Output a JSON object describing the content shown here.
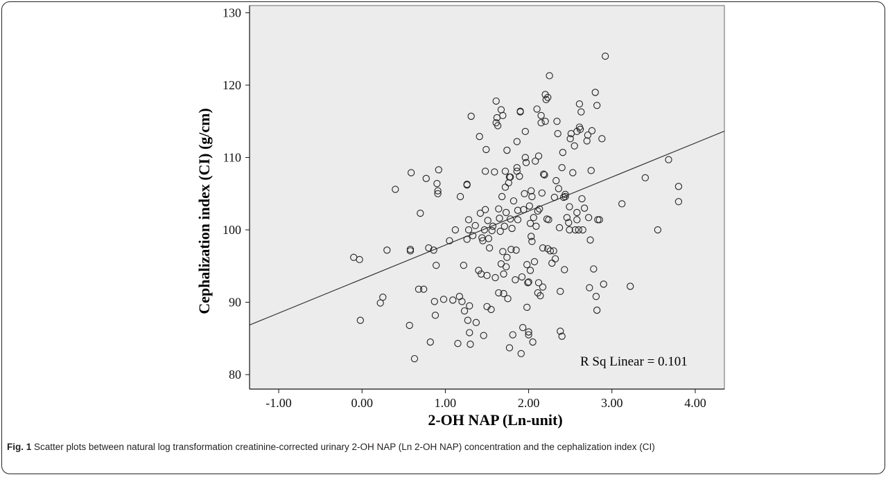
{
  "caption": {
    "label": "Fig. 1",
    "text": "Scatter plots between natural log transformation creatinine-corrected urinary 2-OH NAP (Ln 2-OH NAP) concentration and the cephalization index (CI)"
  },
  "chart_data": {
    "type": "scatter",
    "title": "",
    "xlabel": "2-OH NAP (Ln-unit)",
    "ylabel": "Cephalization index (CI) (g/cm)",
    "xlim": [
      -1.35,
      4.35
    ],
    "ylim": [
      78,
      131
    ],
    "xticks": [
      -1.0,
      0.0,
      1.0,
      2.0,
      3.0,
      4.0
    ],
    "xtick_labels": [
      "-1.00",
      "0.00",
      "1.00",
      "2.00",
      "3.00",
      "4.00"
    ],
    "yticks": [
      80,
      90,
      100,
      110,
      120,
      130
    ],
    "ytick_labels": [
      "80",
      "90",
      "100",
      "110",
      "120",
      "130"
    ],
    "grid": false,
    "background": "#ececec",
    "marker": "open-circle",
    "annotation": "R Sq Linear = 0.101",
    "fit_line": {
      "intercept": 93.2,
      "slope": 4.7,
      "x_range": [
        -1.35,
        4.35
      ]
    },
    "points": [
      [
        -0.1,
        96.2
      ],
      [
        -0.03,
        95.9
      ],
      [
        -0.02,
        87.5
      ],
      [
        0.22,
        89.9
      ],
      [
        0.25,
        90.7
      ],
      [
        0.3,
        97.2
      ],
      [
        0.4,
        105.6
      ],
      [
        0.57,
        86.8
      ],
      [
        0.58,
        97.3
      ],
      [
        0.58,
        97.1
      ],
      [
        0.59,
        107.9
      ],
      [
        0.63,
        82.2
      ],
      [
        0.68,
        91.8
      ],
      [
        0.7,
        102.3
      ],
      [
        0.74,
        91.8
      ],
      [
        0.77,
        107.1
      ],
      [
        0.8,
        97.5
      ],
      [
        0.82,
        84.5
      ],
      [
        0.86,
        97.2
      ],
      [
        0.87,
        90.1
      ],
      [
        0.88,
        88.2
      ],
      [
        0.89,
        95.1
      ],
      [
        0.9,
        106.4
      ],
      [
        0.91,
        105.4
      ],
      [
        0.91,
        105.0
      ],
      [
        0.92,
        108.3
      ],
      [
        0.98,
        90.4
      ],
      [
        1.05,
        98.5
      ],
      [
        1.09,
        90.3
      ],
      [
        1.12,
        100.0
      ],
      [
        1.15,
        84.3
      ],
      [
        1.17,
        90.8
      ],
      [
        1.18,
        104.6
      ],
      [
        1.2,
        90.1
      ],
      [
        1.22,
        95.1
      ],
      [
        1.23,
        88.8
      ],
      [
        1.26,
        106.3
      ],
      [
        1.26,
        106.2
      ],
      [
        1.26,
        98.7
      ],
      [
        1.27,
        87.5
      ],
      [
        1.28,
        101.4
      ],
      [
        1.28,
        100.0
      ],
      [
        1.29,
        89.5
      ],
      [
        1.29,
        85.8
      ],
      [
        1.3,
        84.2
      ],
      [
        1.31,
        115.7
      ],
      [
        1.33,
        99.2
      ],
      [
        1.36,
        100.6
      ],
      [
        1.37,
        87.2
      ],
      [
        1.4,
        94.4
      ],
      [
        1.41,
        112.9
      ],
      [
        1.42,
        102.3
      ],
      [
        1.43,
        93.9
      ],
      [
        1.44,
        98.9
      ],
      [
        1.45,
        98.5
      ],
      [
        1.46,
        85.4
      ],
      [
        1.47,
        100.0
      ],
      [
        1.48,
        108.1
      ],
      [
        1.48,
        102.8
      ],
      [
        1.49,
        111.1
      ],
      [
        1.5,
        93.7
      ],
      [
        1.5,
        89.4
      ],
      [
        1.51,
        101.3
      ],
      [
        1.52,
        98.8
      ],
      [
        1.53,
        97.5
      ],
      [
        1.55,
        89.0
      ],
      [
        1.56,
        99.9
      ],
      [
        1.57,
        100.5
      ],
      [
        1.59,
        108.0
      ],
      [
        1.6,
        93.4
      ],
      [
        1.61,
        117.8
      ],
      [
        1.61,
        114.8
      ],
      [
        1.62,
        115.5
      ],
      [
        1.63,
        114.4
      ],
      [
        1.64,
        91.3
      ],
      [
        1.64,
        102.9
      ],
      [
        1.65,
        101.6
      ],
      [
        1.66,
        99.8
      ],
      [
        1.67,
        116.6
      ],
      [
        1.67,
        95.3
      ],
      [
        1.68,
        104.6
      ],
      [
        1.69,
        115.8
      ],
      [
        1.69,
        97.0
      ],
      [
        1.7,
        91.2
      ],
      [
        1.7,
        93.9
      ],
      [
        1.71,
        100.5
      ],
      [
        1.72,
        105.9
      ],
      [
        1.72,
        108.1
      ],
      [
        1.73,
        102.4
      ],
      [
        1.73,
        94.9
      ],
      [
        1.74,
        111.0
      ],
      [
        1.74,
        96.2
      ],
      [
        1.75,
        90.5
      ],
      [
        1.76,
        106.5
      ],
      [
        1.77,
        83.7
      ],
      [
        1.77,
        107.3
      ],
      [
        1.78,
        101.5
      ],
      [
        1.78,
        107.3
      ],
      [
        1.79,
        97.3
      ],
      [
        1.8,
        100.2
      ],
      [
        1.81,
        85.5
      ],
      [
        1.82,
        104.0
      ],
      [
        1.84,
        93.1
      ],
      [
        1.85,
        97.2
      ],
      [
        1.86,
        108.1
      ],
      [
        1.86,
        108.6
      ],
      [
        1.86,
        112.2
      ],
      [
        1.87,
        102.7
      ],
      [
        1.87,
        101.4
      ],
      [
        1.89,
        107.4
      ],
      [
        1.9,
        116.3
      ],
      [
        1.9,
        116.4
      ],
      [
        1.91,
        82.9
      ],
      [
        1.92,
        93.5
      ],
      [
        1.93,
        86.5
      ],
      [
        1.94,
        102.8
      ],
      [
        1.95,
        105.0
      ],
      [
        1.96,
        110.0
      ],
      [
        1.96,
        113.6
      ],
      [
        1.97,
        109.3
      ],
      [
        1.98,
        89.3
      ],
      [
        1.98,
        95.2
      ],
      [
        1.99,
        92.7
      ],
      [
        2.0,
        92.8
      ],
      [
        2.0,
        85.9
      ],
      [
        2.0,
        85.5
      ],
      [
        2.01,
        103.3
      ],
      [
        2.02,
        94.4
      ],
      [
        2.02,
        100.9
      ],
      [
        2.03,
        99.1
      ],
      [
        2.03,
        105.4
      ],
      [
        2.04,
        104.6
      ],
      [
        2.04,
        98.4
      ],
      [
        2.05,
        84.5
      ],
      [
        2.06,
        101.7
      ],
      [
        2.07,
        95.6
      ],
      [
        2.08,
        109.5
      ],
      [
        2.09,
        100.5
      ],
      [
        2.1,
        116.7
      ],
      [
        2.11,
        91.3
      ],
      [
        2.11,
        102.6
      ],
      [
        2.12,
        110.2
      ],
      [
        2.12,
        92.7
      ],
      [
        2.13,
        102.9
      ],
      [
        2.14,
        90.9
      ],
      [
        2.15,
        114.8
      ],
      [
        2.15,
        115.8
      ],
      [
        2.16,
        105.1
      ],
      [
        2.17,
        92.1
      ],
      [
        2.17,
        97.5
      ],
      [
        2.18,
        107.7
      ],
      [
        2.19,
        107.6
      ],
      [
        2.2,
        115.0
      ],
      [
        2.2,
        118.7
      ],
      [
        2.21,
        118.0
      ],
      [
        2.22,
        101.5
      ],
      [
        2.23,
        97.4
      ],
      [
        2.23,
        118.3
      ],
      [
        2.24,
        101.4
      ],
      [
        2.25,
        121.3
      ],
      [
        2.26,
        97.1
      ],
      [
        2.28,
        95.4
      ],
      [
        2.3,
        97.1
      ],
      [
        2.31,
        104.5
      ],
      [
        2.32,
        96.0
      ],
      [
        2.33,
        106.8
      ],
      [
        2.34,
        115.0
      ],
      [
        2.35,
        113.3
      ],
      [
        2.36,
        105.7
      ],
      [
        2.37,
        100.3
      ],
      [
        2.38,
        86.0
      ],
      [
        2.38,
        91.5
      ],
      [
        2.4,
        85.3
      ],
      [
        2.4,
        108.6
      ],
      [
        2.41,
        110.7
      ],
      [
        2.42,
        104.5
      ],
      [
        2.43,
        94.5
      ],
      [
        2.44,
        104.6
      ],
      [
        2.44,
        104.9
      ],
      [
        2.46,
        101.7
      ],
      [
        2.48,
        101.0
      ],
      [
        2.49,
        103.2
      ],
      [
        2.49,
        100.0
      ],
      [
        2.5,
        112.6
      ],
      [
        2.51,
        113.3
      ],
      [
        2.53,
        107.9
      ],
      [
        2.55,
        111.6
      ],
      [
        2.56,
        100.0
      ],
      [
        2.58,
        113.6
      ],
      [
        2.58,
        101.4
      ],
      [
        2.58,
        102.4
      ],
      [
        2.6,
        100.0
      ],
      [
        2.61,
        114.2
      ],
      [
        2.61,
        117.4
      ],
      [
        2.62,
        113.9
      ],
      [
        2.63,
        116.3
      ],
      [
        2.64,
        104.3
      ],
      [
        2.65,
        100.0
      ],
      [
        2.67,
        103.0
      ],
      [
        2.7,
        112.3
      ],
      [
        2.71,
        113.1
      ],
      [
        2.72,
        101.7
      ],
      [
        2.73,
        92.0
      ],
      [
        2.74,
        98.6
      ],
      [
        2.75,
        108.2
      ],
      [
        2.76,
        113.7
      ],
      [
        2.78,
        94.6
      ],
      [
        2.8,
        119.0
      ],
      [
        2.81,
        90.8
      ],
      [
        2.82,
        117.2
      ],
      [
        2.82,
        88.9
      ],
      [
        2.83,
        101.4
      ],
      [
        2.85,
        101.4
      ],
      [
        2.88,
        112.6
      ],
      [
        2.9,
        92.5
      ],
      [
        2.92,
        124.0
      ],
      [
        3.12,
        103.6
      ],
      [
        3.22,
        92.2
      ],
      [
        3.4,
        107.2
      ],
      [
        3.55,
        100.0
      ],
      [
        3.68,
        109.7
      ],
      [
        3.8,
        106.0
      ],
      [
        3.8,
        103.9
      ]
    ]
  }
}
